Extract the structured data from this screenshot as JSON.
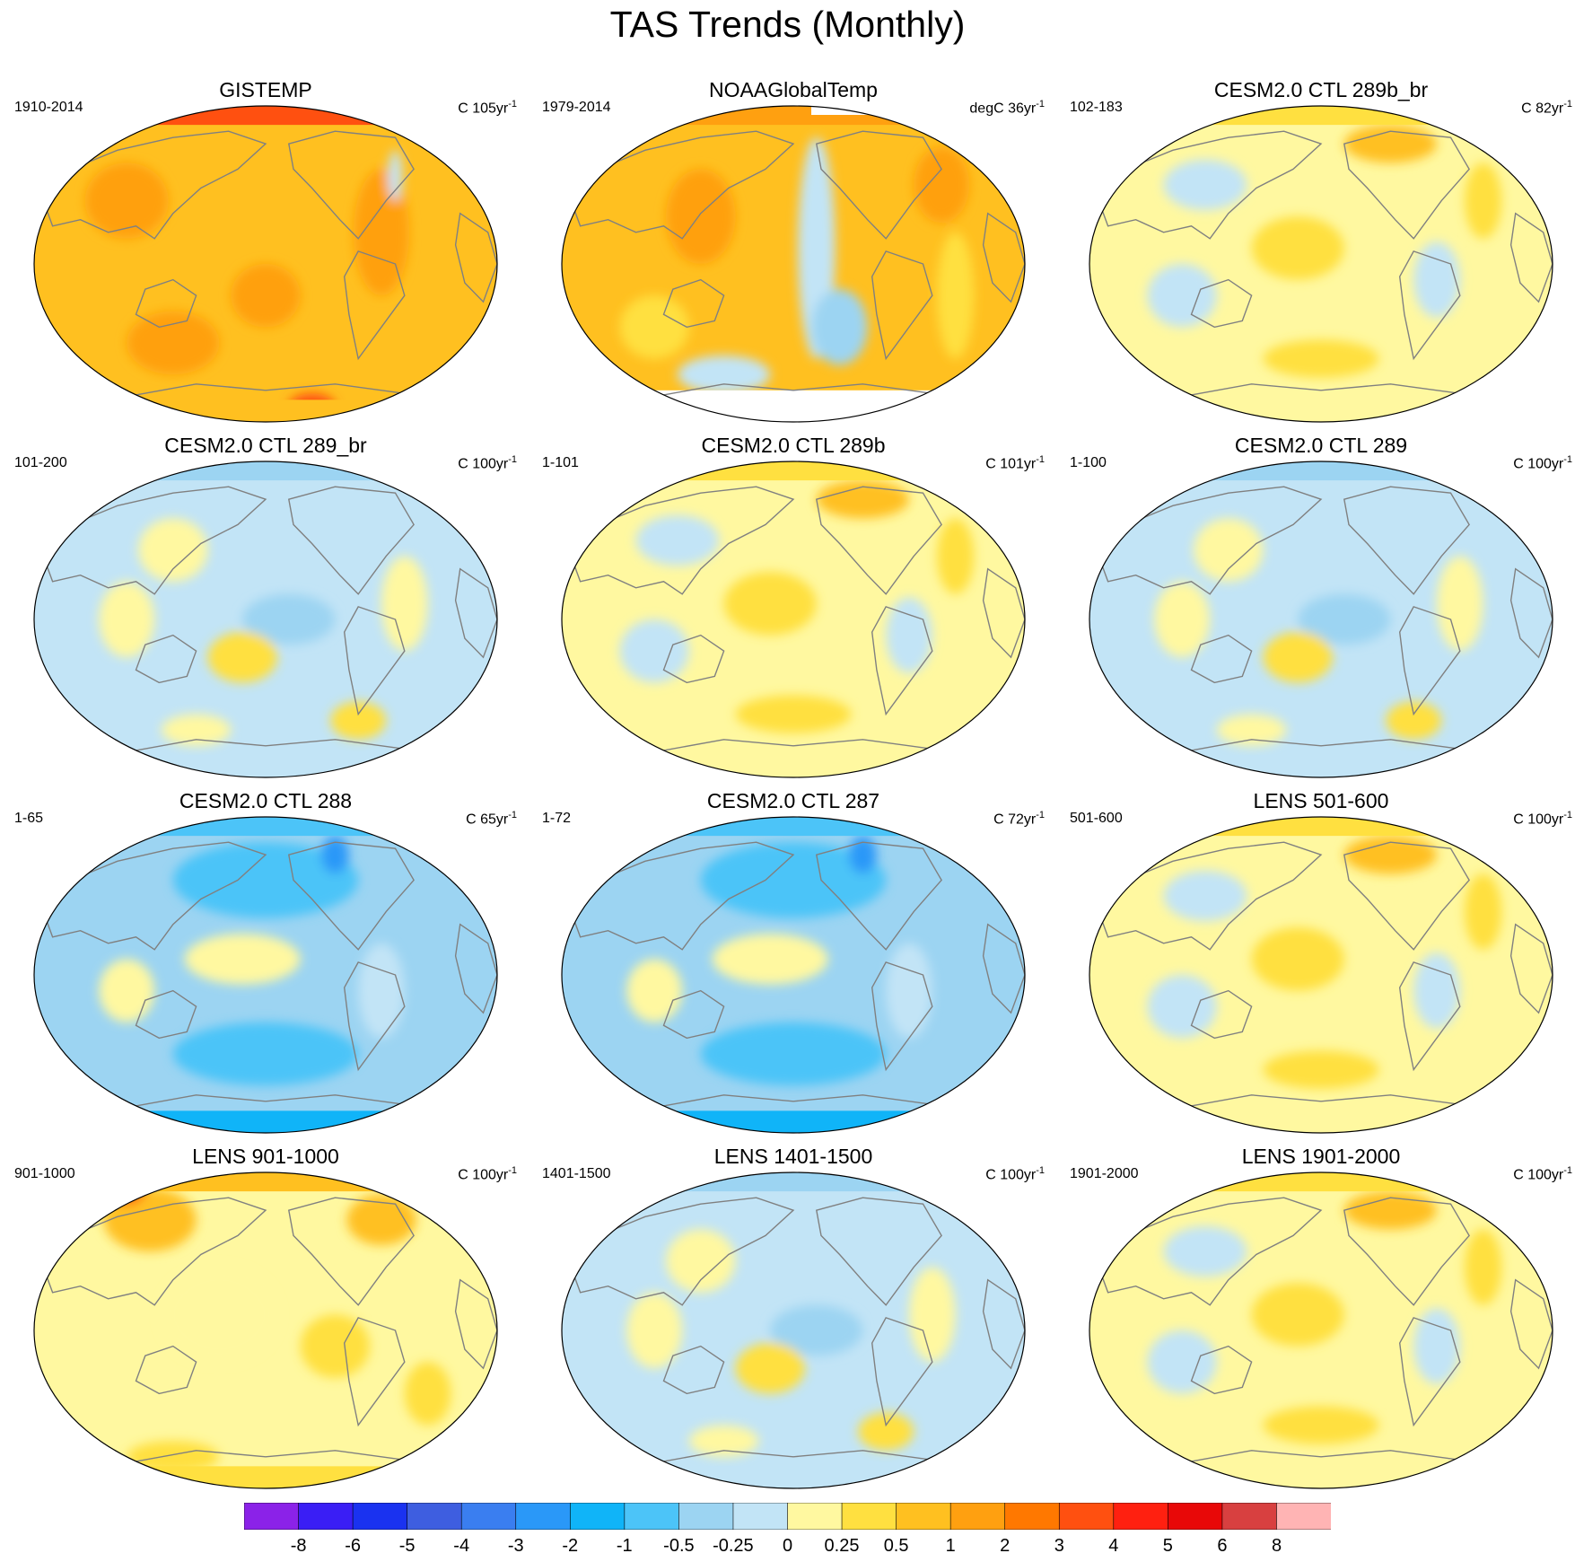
{
  "title": "TAS Trends (Monthly)",
  "panels": [
    {
      "title": "GISTEMP",
      "period": "1910-2014",
      "units": "C 105yr",
      "units_sup": "-1",
      "pattern": "gistemp"
    },
    {
      "title": "NOAAGlobalTemp",
      "period": "1979-2014",
      "units": "degC 36yr",
      "units_sup": "-1",
      "pattern": "noaa"
    },
    {
      "title": "CESM2.0 CTL 289b_br",
      "period": "102-183",
      "units": "C 82yr",
      "units_sup": "-1",
      "pattern": "mixed_warm"
    },
    {
      "title": "CESM2.0 CTL 289_br",
      "period": "101-200",
      "units": "C 100yr",
      "units_sup": "-1",
      "pattern": "mixed_cool"
    },
    {
      "title": "CESM2.0 CTL 289b",
      "period": "1-101",
      "units": "C 101yr",
      "units_sup": "-1",
      "pattern": "mixed_warm"
    },
    {
      "title": "CESM2.0 CTL 289",
      "period": "1-100",
      "units": "C 100yr",
      "units_sup": "-1",
      "pattern": "mixed_cool"
    },
    {
      "title": "CESM2.0 CTL 288",
      "period": "1-65",
      "units": "C 65yr",
      "units_sup": "-1",
      "pattern": "cool"
    },
    {
      "title": "CESM2.0 CTL 287",
      "period": "1-72",
      "units": "C 72yr",
      "units_sup": "-1",
      "pattern": "cool"
    },
    {
      "title": "LENS 501-600",
      "period": "501-600",
      "units": "C 100yr",
      "units_sup": "-1",
      "pattern": "mixed_warm"
    },
    {
      "title": "LENS 901-1000",
      "period": "901-1000",
      "units": "C 100yr",
      "units_sup": "-1",
      "pattern": "warm_light"
    },
    {
      "title": "LENS 1401-1500",
      "period": "1401-1500",
      "units": "C 100yr",
      "units_sup": "-1",
      "pattern": "mixed_cool"
    },
    {
      "title": "LENS 1901-2000",
      "period": "1901-2000",
      "units": "C 100yr",
      "units_sup": "-1",
      "pattern": "mixed_warm"
    }
  ],
  "colorbar": {
    "labels": [
      "-8",
      "-6",
      "-5",
      "-4",
      "-3",
      "-2",
      "-1",
      "-0.5",
      "-0.25",
      "0",
      "0.25",
      "0.5",
      "1",
      "2",
      "3",
      "4",
      "5",
      "6",
      "8"
    ],
    "colors": [
      "#8b22e8",
      "#3a1ef5",
      "#1a32f0",
      "#3e5ee0",
      "#3a7ef0",
      "#2a98f8",
      "#10b4f8",
      "#4cc4f8",
      "#9cd4f2",
      "#c2e4f6",
      "#fff8a0",
      "#ffe040",
      "#ffc020",
      "#ffa010",
      "#ff7800",
      "#ff5010",
      "#ff2010",
      "#e80808",
      "#d84040",
      "#ffb4b4"
    ]
  },
  "colors": {
    "coast": "#808080",
    "missing": "#ffffff"
  }
}
